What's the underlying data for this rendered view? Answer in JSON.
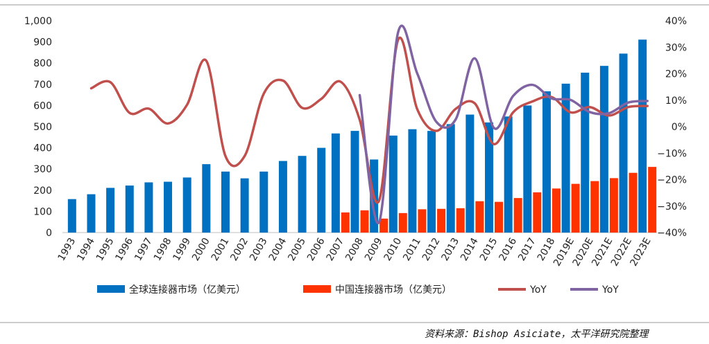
{
  "chart_data": {
    "type": "bar",
    "categories": [
      "1993",
      "1994",
      "1995",
      "1996",
      "1997",
      "1998",
      "1999",
      "2000",
      "2001",
      "2002",
      "2003",
      "2004",
      "2005",
      "2006",
      "2007",
      "2008",
      "2009",
      "2010",
      "2011",
      "2012",
      "2013",
      "2014",
      "2015",
      "2016",
      "2017",
      "2018",
      "2019E",
      "2020E",
      "2021E",
      "2022E",
      "2023E"
    ],
    "ylim": [
      0,
      1000
    ],
    "y2lim": [
      -40,
      40
    ],
    "y_ticks": [
      "0",
      "100",
      "200",
      "300",
      "400",
      "500",
      "600",
      "700",
      "800",
      "900",
      "1,000"
    ],
    "y2_ticks": [
      "−40%",
      "−30%",
      "−20%",
      "−10%",
      "0%",
      "10%",
      "20%",
      "30%",
      "40%"
    ],
    "series": [
      {
        "name": "全球连接器市场（亿美元）",
        "kind": "bar",
        "axis": "left",
        "color": "#0070c0",
        "values": [
          158,
          181,
          211,
          222,
          237,
          240,
          260,
          323,
          288,
          256,
          288,
          338,
          362,
          400,
          468,
          480,
          345,
          458,
          488,
          480,
          512,
          557,
          520,
          548,
          600,
          667,
          703,
          755,
          787,
          845,
          911
        ]
      },
      {
        "name": "中国连接器市场（亿美元）",
        "kind": "bar",
        "axis": "left",
        "color": "#ff3300",
        "values": [
          null,
          null,
          null,
          null,
          null,
          null,
          null,
          null,
          null,
          null,
          null,
          null,
          null,
          null,
          95,
          105,
          66,
          92,
          110,
          112,
          115,
          148,
          145,
          163,
          190,
          208,
          230,
          243,
          257,
          282,
          310
        ]
      },
      {
        "name": "YoY",
        "kind": "line",
        "axis": "right",
        "color": "#c0504d",
        "values": [
          null,
          14.5,
          16.8,
          5.2,
          6.8,
          1.2,
          8.3,
          24.9,
          -11.1,
          -11.1,
          12.5,
          17.4,
          7.1,
          10.5,
          17.0,
          2.6,
          -28.1,
          32.8,
          6.6,
          -1.6,
          6.7,
          8.8,
          -6.6,
          5.4,
          9.5,
          11.2,
          5.4,
          7.4,
          4.2,
          7.4,
          7.8
        ]
      },
      {
        "name": "YoY",
        "kind": "line",
        "axis": "right",
        "color": "#8064a2",
        "values": [
          null,
          null,
          null,
          null,
          null,
          null,
          null,
          null,
          null,
          null,
          null,
          null,
          null,
          null,
          null,
          11.9,
          -36.2,
          35.6,
          20.1,
          1.8,
          2.7,
          25.8,
          -0.5,
          11.6,
          15.8,
          10.7,
          10.1,
          5.5,
          5.1,
          9.1,
          9.7
        ]
      }
    ],
    "legend_position": "bottom",
    "grid": false
  },
  "source_note": "资料来源：Bishop Asiciate，太平洋研究院整理"
}
